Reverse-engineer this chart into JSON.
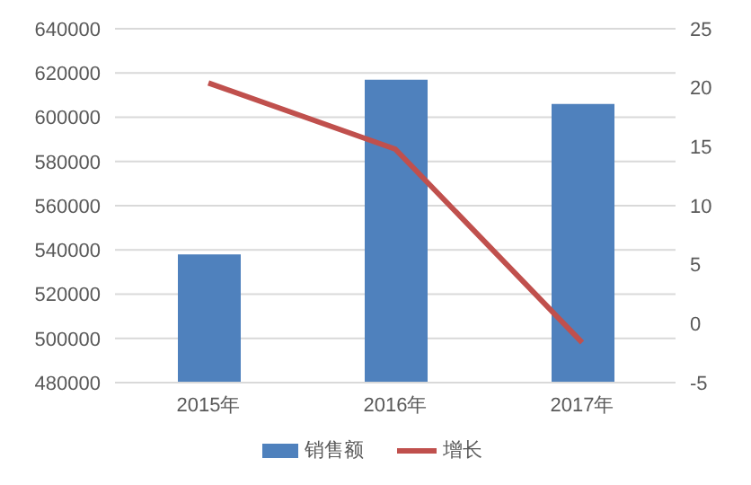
{
  "chart_data": {
    "type": "bar",
    "categories": [
      "2015年",
      "2016年",
      "2017年"
    ],
    "series": [
      {
        "name": "销售额",
        "color": "#4f81bd",
        "values": [
          538000,
          617000,
          606000
        ]
      },
      {
        "name": "增长",
        "type": "line",
        "axis": "y2",
        "color": "#c0504d",
        "values": [
          20.4,
          14.8,
          -1.6
        ]
      }
    ],
    "ylim": [
      480000,
      640000
    ],
    "yticks": [
      480000,
      500000,
      520000,
      540000,
      560000,
      580000,
      600000,
      620000,
      640000
    ],
    "y2lim": [
      -5,
      25
    ],
    "y2ticks": [
      -5,
      0,
      5,
      10,
      15,
      20,
      25
    ],
    "grid": "y",
    "legend": "bottom",
    "marker": "none"
  }
}
